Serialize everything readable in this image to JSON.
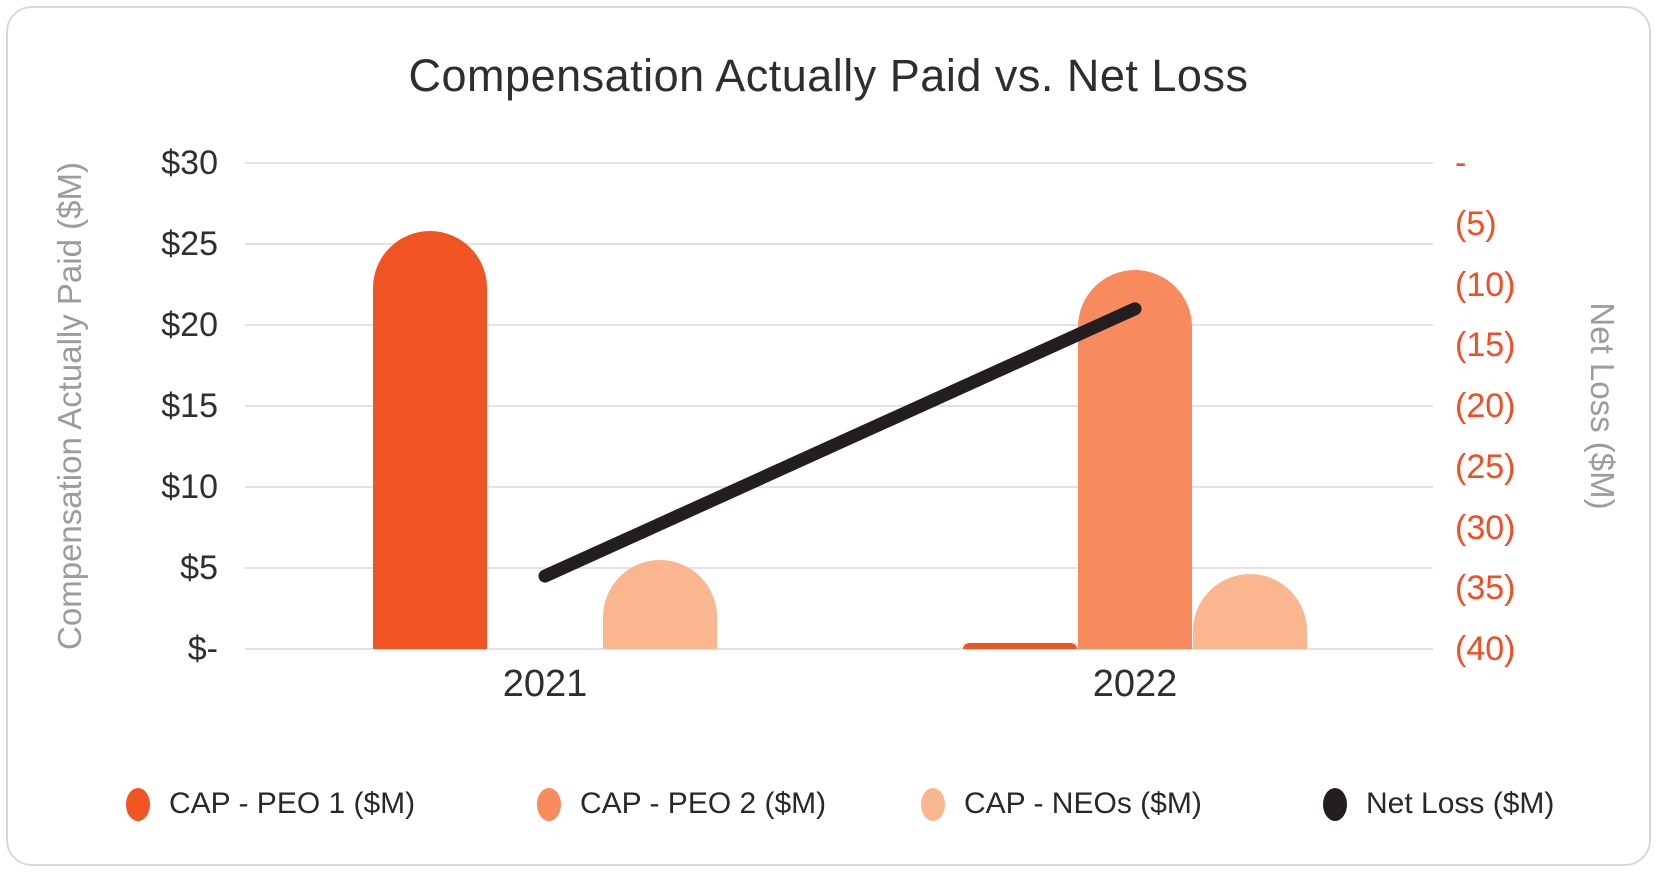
{
  "chart_data": {
    "type": "combo-bar-line",
    "title": "Compensation Actually Paid vs. Net Loss",
    "categories": [
      "2021",
      "2022"
    ],
    "series": [
      {
        "name": "CAP - PEO 1 ($M)",
        "type": "bar",
        "axis": "left",
        "color": "#F05423",
        "values": [
          25.8,
          0.35
        ]
      },
      {
        "name": "CAP - PEO 2 ($M)",
        "type": "bar",
        "axis": "left",
        "color": "#F78B5D",
        "values": [
          0,
          23.4
        ]
      },
      {
        "name": "CAP - NEOs ($M)",
        "type": "bar",
        "axis": "left",
        "color": "#FAB68F",
        "values": [
          5.5,
          4.6
        ]
      },
      {
        "name": "Net Loss ($M)",
        "type": "line",
        "axis": "right",
        "color": "#231F20",
        "values": [
          -34,
          -12
        ]
      }
    ],
    "left_axis": {
      "label": "Compensation Actually Paid ($M)",
      "min": 0,
      "max": 30,
      "ticks": [
        "$30",
        "$25",
        "$20",
        "$15",
        "$10",
        "$5",
        "$-"
      ],
      "tick_values": [
        30,
        25,
        20,
        15,
        10,
        5,
        0
      ],
      "tick_color": "#2f2f2f"
    },
    "right_axis": {
      "label": "Net Loss ($M)",
      "min": -40,
      "max": 0,
      "ticks": [
        "-",
        "(5)",
        "(10)",
        "(15)",
        "(20)",
        "(25)",
        "(30)",
        "(35)",
        "(40)"
      ],
      "tick_values": [
        0,
        -5,
        -10,
        -15,
        -20,
        -25,
        -30,
        -35,
        -40
      ],
      "tick_color": "#F04E23"
    },
    "grid": true,
    "legend_position": "bottom"
  }
}
